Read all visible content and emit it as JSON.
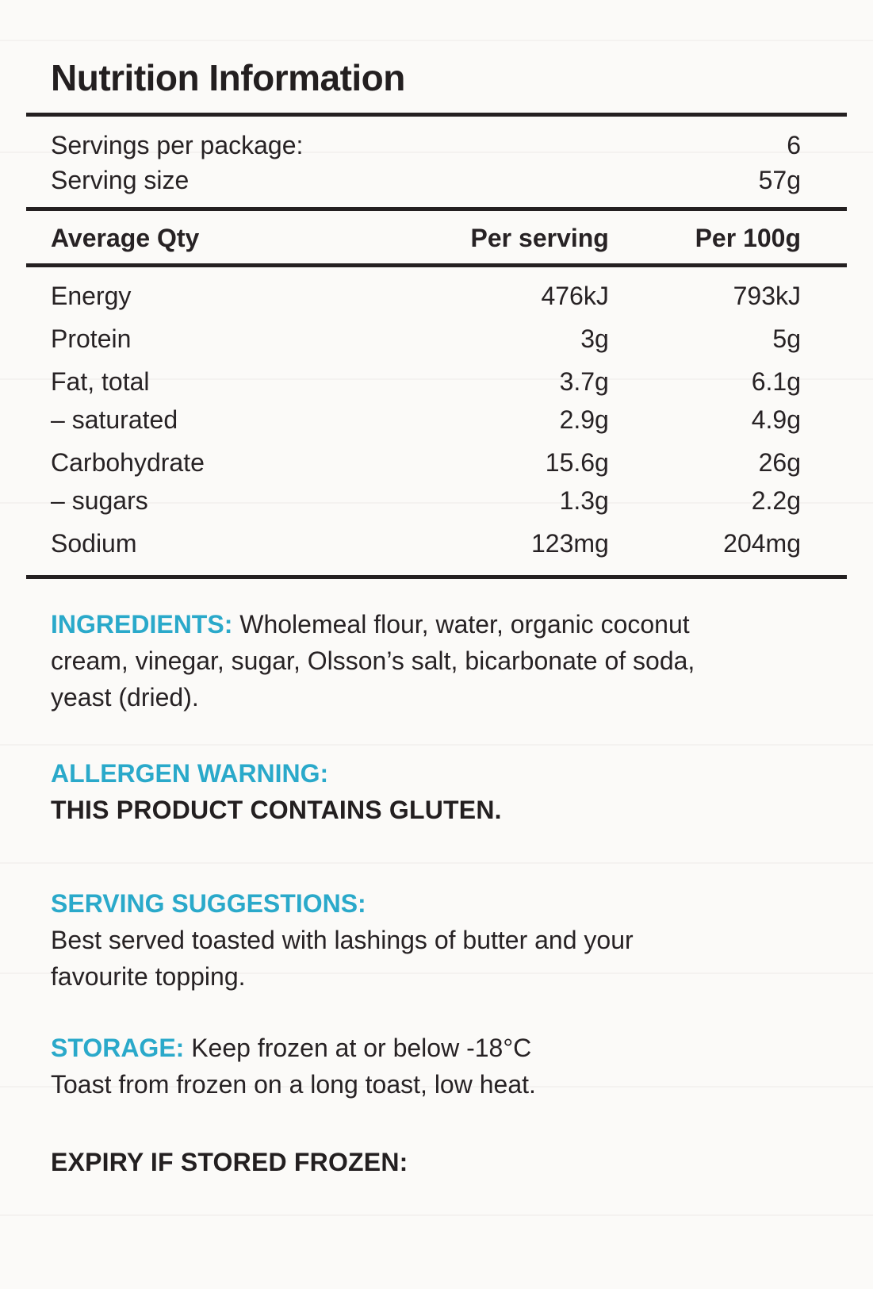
{
  "page": {
    "title": "Nutrition Information",
    "serving_info": [
      {
        "label": "Servings per package:",
        "value": "6"
      },
      {
        "label": "Serving size",
        "value": "57g"
      }
    ],
    "table": {
      "col_name": "Average Qty",
      "col_per_serving": "Per serving",
      "col_per_100g": "Per 100g",
      "rows": [
        {
          "name": "Energy",
          "per_serving": "476kJ",
          "per_100g": "793kJ"
        },
        {
          "name": "Protein",
          "per_serving": "3g",
          "per_100g": "5g"
        },
        {
          "name": "Fat, total",
          "per_serving": "3.7g",
          "per_100g": "6.1g"
        },
        {
          "name": "– saturated",
          "per_serving": "2.9g",
          "per_100g": "4.9g"
        },
        {
          "name": "Carbohydrate",
          "per_serving": "15.6g",
          "per_100g": "26g"
        },
        {
          "name": "– sugars",
          "per_serving": "1.3g",
          "per_100g": "2.2g"
        },
        {
          "name": "Sodium",
          "per_serving": "123mg",
          "per_100g": "204mg"
        }
      ]
    },
    "ingredients": {
      "heading": "INGREDIENTS:",
      "text": "Wholemeal flour, water, organic coconut cream, vinegar, sugar, Olsson’s salt, bicarbonate of soda, yeast (dried)."
    },
    "allergen": {
      "heading": "ALLERGEN WARNING:",
      "text": "THIS PRODUCT CONTAINS GLUTEN."
    },
    "serving_suggestions": {
      "heading": "SERVING SUGGESTIONS:",
      "text": "Best served toasted with lashings of butter and your favourite topping."
    },
    "storage": {
      "heading": "STORAGE:",
      "line1": "Keep frozen at or below -18°C",
      "line2": "Toast from frozen on a long toast, low heat."
    },
    "expiry": {
      "heading": "EXPIRY IF STORED FROZEN:"
    },
    "colors": {
      "accent": "#2aa9ca",
      "ink": "#272224"
    }
  }
}
